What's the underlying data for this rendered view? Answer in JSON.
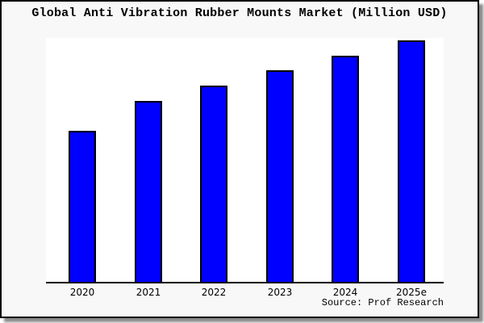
{
  "title": "Global Anti Vibration Rubber Mounts Market (Million USD)",
  "source_label": "Source: Prof Research",
  "colors": {
    "bar_fill": "#0000ff",
    "bar_border": "#000000",
    "figure_background": "#f8f8f8",
    "plot_background": "#ffffff",
    "axis_line": "#000000",
    "frame_border": "#000000",
    "shadow": "#8a8a8a",
    "text": "#000000"
  },
  "chart_data": {
    "type": "bar",
    "title": "Global Anti Vibration Rubber Mounts Market (Million USD)",
    "categories": [
      "2020",
      "2021",
      "2022",
      "2023",
      "2024",
      "2025e"
    ],
    "values": [
      189,
      226,
      245,
      264,
      282,
      301
    ],
    "series_note": "No y-axis, gridlines or value labels shown; values are relative bar heights measured in pixels from the baseline",
    "xlabel": "",
    "ylabel": "",
    "y_axis_visible": false,
    "grid": false,
    "legend": false,
    "annotations": [
      "Source: Prof Research"
    ]
  }
}
